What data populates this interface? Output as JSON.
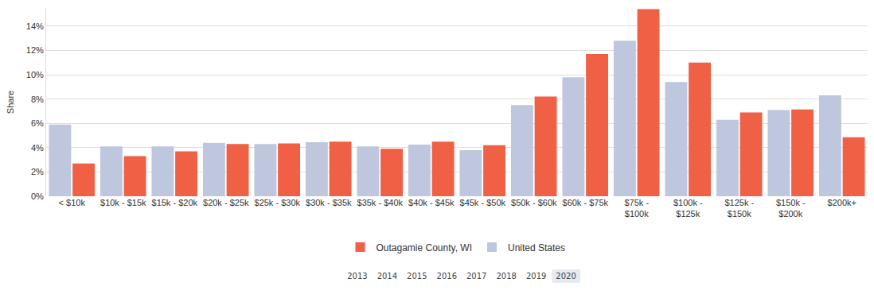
{
  "chart_data": {
    "type": "bar",
    "y_label": "Share",
    "categories": [
      "< $10k",
      "$10k - $15k",
      "$15k - $20k",
      "$20k - $25k",
      "$25k - $30k",
      "$30k - $35k",
      "$35k - $40k",
      "$40k - $45k",
      "$45k - $50k",
      "$50k - $60k",
      "$60k - $75k",
      "$75k - $100k",
      "$100k - $125k",
      "$125k - $150k",
      "$150k - $200k",
      "$200k+"
    ],
    "series": [
      {
        "name": "United States",
        "color": "#bfc7de",
        "values": [
          5.9,
          4.1,
          4.1,
          4.4,
          4.3,
          4.45,
          4.1,
          4.25,
          3.8,
          7.5,
          9.8,
          12.8,
          9.4,
          6.3,
          7.1,
          8.3
        ]
      },
      {
        "name": "Outagamie County, WI",
        "color": "#ef6044",
        "values": [
          2.7,
          3.3,
          3.7,
          4.3,
          4.35,
          4.5,
          3.9,
          4.5,
          4.2,
          8.2,
          11.7,
          15.4,
          11.0,
          6.9,
          7.15,
          4.85
        ]
      }
    ],
    "ylim": [
      0,
      15.5
    ],
    "yticks": [
      {
        "value": 0,
        "label": "0%"
      },
      {
        "value": 2,
        "label": "2%"
      },
      {
        "value": 4,
        "label": "4%"
      },
      {
        "value": 6,
        "label": "6%"
      },
      {
        "value": 8,
        "label": "8%"
      },
      {
        "value": 10,
        "label": "10%"
      },
      {
        "value": 12,
        "label": "12%"
      },
      {
        "value": 14,
        "label": "14%"
      }
    ],
    "grid": true,
    "legend": "bottom"
  },
  "year_selector": {
    "years": [
      "2013",
      "2014",
      "2015",
      "2016",
      "2017",
      "2018",
      "2019",
      "2020"
    ],
    "selected": "2020"
  }
}
